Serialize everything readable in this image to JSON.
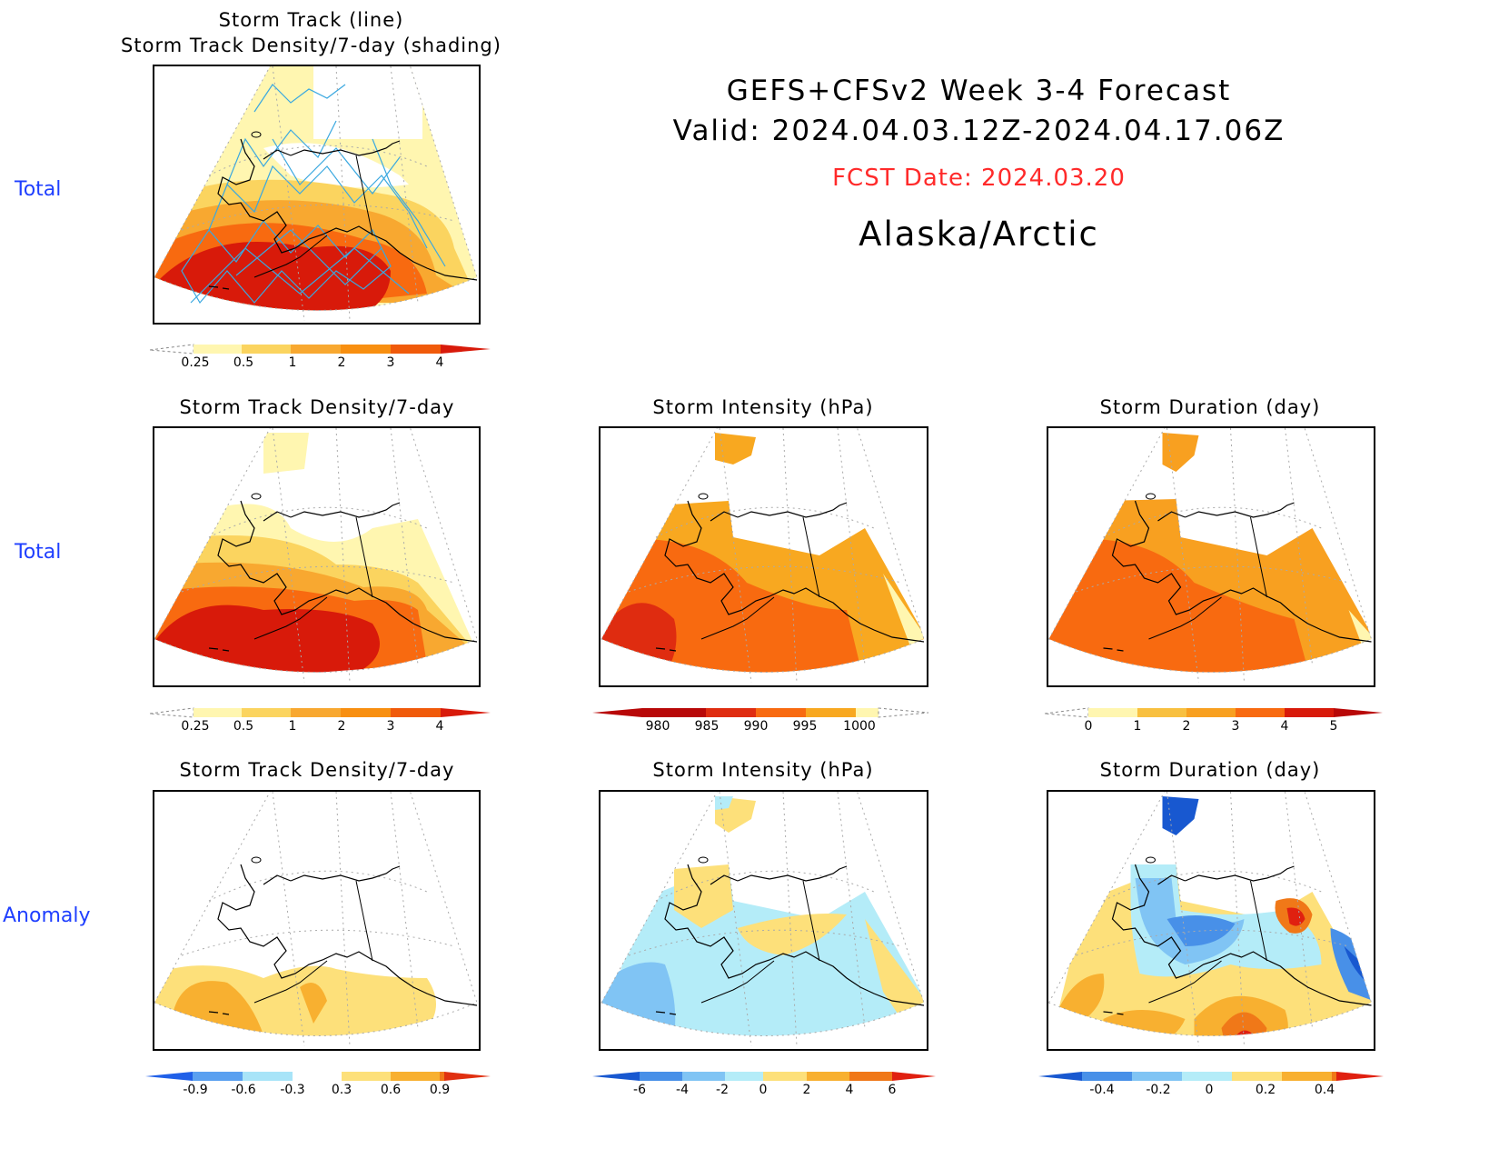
{
  "header": {
    "line1": "GEFS+CFSv2 Week 3-4 Forecast",
    "line2": "Valid: 2024.04.03.12Z-2024.04.17.06Z",
    "fcst_date": "FCST Date: 2024.03.20",
    "region": "Alaska/Arctic",
    "fcst_color": "#ff2a2a"
  },
  "row_labels": [
    "Total",
    "Total",
    "Anomaly"
  ],
  "panels": {
    "top": {
      "title_line1": "Storm Track (line)",
      "title_line2": "Storm Track Density/7-day (shading)"
    },
    "density_total": {
      "title": "Storm Track Density/7-day"
    },
    "intensity_total": {
      "title": "Storm Intensity (hPa)"
    },
    "duration_total": {
      "title": "Storm Duration (day)"
    },
    "density_anom": {
      "title": "Storm Track Density/7-day"
    },
    "intensity_anom": {
      "title": "Storm Intensity (hPa)"
    },
    "duration_anom": {
      "title": "Storm Duration (day)"
    }
  },
  "colorbars": {
    "density": {
      "labels": [
        "0.25",
        "0.5",
        "1",
        "2",
        "3",
        "4"
      ],
      "colors": [
        "#fff6b0",
        "#fbd45f",
        "#f8a830",
        "#f88f10",
        "#f05a0a",
        "#d81a0a"
      ]
    },
    "intensity": {
      "labels": [
        "980",
        "985",
        "990",
        "995",
        "1000"
      ],
      "colors": [
        "#b80808",
        "#df2c10",
        "#f86a10",
        "#f8a820",
        "#fff6b0"
      ]
    },
    "duration": {
      "labels": [
        "0",
        "1",
        "2",
        "3",
        "4",
        "5"
      ],
      "colors": [
        "#fff6b0",
        "#f8c040",
        "#f8a020",
        "#f86a10",
        "#d81a0a"
      ]
    },
    "density_anom": {
      "labels": [
        "-0.9",
        "-0.6",
        "-0.3",
        "0.3",
        "0.6",
        "0.9"
      ],
      "colors": [
        "#2060e8",
        "#5aa0f0",
        "#a8e4f8",
        "#ffffff",
        "#fde07a",
        "#f8b030",
        "#f07818",
        "#e03010"
      ]
    },
    "intensity_anom": {
      "labels": [
        "-6",
        "-4",
        "-2",
        "0",
        "2",
        "4",
        "6"
      ],
      "colors": [
        "#1858d0",
        "#4890e8",
        "#80c4f4",
        "#b4ecf8",
        "#b4ecf8",
        "#fde07a",
        "#f8b030",
        "#f07818",
        "#e02010"
      ]
    },
    "duration_anom": {
      "labels": [
        "-0.4",
        "-0.2",
        "0",
        "0.2",
        "0.4"
      ],
      "colors": [
        "#1858d0",
        "#4890e8",
        "#80c4f4",
        "#b4ecf8",
        "#fde07a",
        "#f8b030",
        "#f07818",
        "#e02010"
      ]
    }
  }
}
